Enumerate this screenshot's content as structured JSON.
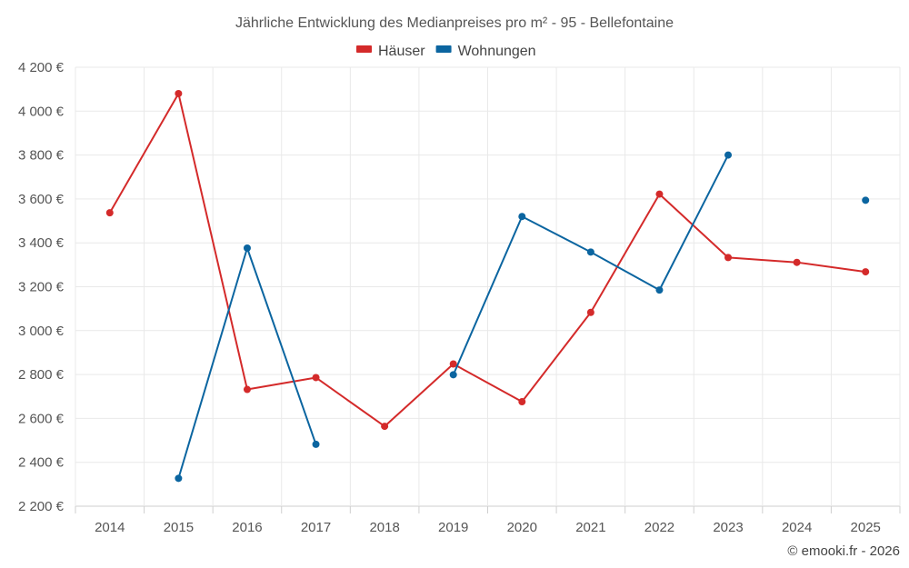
{
  "chart_data": {
    "type": "line",
    "title": "Jährliche Entwicklung des Medianpreises pro m² - 95 - Bellefontaine",
    "categories": [
      "2014",
      "2015",
      "2016",
      "2017",
      "2018",
      "2019",
      "2020",
      "2021",
      "2022",
      "2023",
      "2024",
      "2025"
    ],
    "ylim": [
      2200,
      4200
    ],
    "yticks": [
      2200,
      2400,
      2600,
      2800,
      3000,
      3200,
      3400,
      3600,
      3800,
      4000,
      4200
    ],
    "ytick_labels": [
      "2 200 €",
      "2 400 €",
      "2 600 €",
      "2 800 €",
      "3 000 €",
      "3 200 €",
      "3 400 €",
      "3 600 €",
      "3 800 €",
      "4 000 €",
      "4 200 €"
    ],
    "grid": true,
    "legend_position": "top-center",
    "series": [
      {
        "name": "Häuser",
        "color": "#d42a2a",
        "values": [
          3537,
          4080,
          2732,
          2786,
          2564,
          2848,
          2676,
          3083,
          3622,
          3333,
          3311,
          3268
        ]
      },
      {
        "name": "Wohnungen",
        "color": "#0b65a0",
        "values": [
          null,
          2327,
          3376,
          2482,
          null,
          2799,
          3520,
          3358,
          3185,
          3800,
          null,
          3594
        ]
      }
    ],
    "credit": "© emooki.fr - 2026"
  }
}
